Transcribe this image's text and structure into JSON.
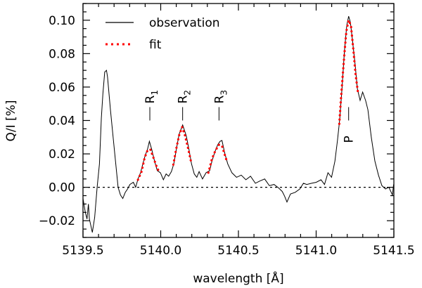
{
  "chart_data": {
    "type": "line",
    "xlabel": "wavelength [Å]",
    "ylabel": "Q/I [%]",
    "xlim": [
      5139.5,
      5141.5
    ],
    "ylim": [
      -0.03,
      0.11
    ],
    "xticks": [
      5139.5,
      5140.0,
      5140.5,
      5141.0,
      5141.5
    ],
    "xtick_labels": [
      "5139.5",
      "5140.0",
      "5140.5",
      "5141.0",
      "5141.5"
    ],
    "yticks": [
      -0.02,
      0.0,
      0.02,
      0.04,
      0.06,
      0.08,
      0.1
    ],
    "ytick_labels": [
      "−0.02",
      "0.00",
      "0.02",
      "0.04",
      "0.06",
      "0.08",
      "0.10"
    ],
    "grid": false,
    "legend_position": "top-left",
    "reference_line": {
      "y": 0.0,
      "style": "dotted"
    },
    "series": [
      {
        "name": "observation",
        "color": "#000000",
        "style": "solid",
        "x": [
          5139.5,
          5139.515,
          5139.526,
          5139.535,
          5139.541,
          5139.56,
          5139.575,
          5139.591,
          5139.606,
          5139.618,
          5139.628,
          5139.64,
          5139.651,
          5139.658,
          5139.677,
          5139.696,
          5139.711,
          5139.726,
          5139.741,
          5139.756,
          5139.772,
          5139.787,
          5139.802,
          5139.824,
          5139.839,
          5139.854,
          5139.87,
          5139.885,
          5139.9,
          5139.915,
          5139.927,
          5139.942,
          5139.96,
          5139.978,
          5139.998,
          5140.017,
          5140.035,
          5140.051,
          5140.069,
          5140.084,
          5140.103,
          5140.118,
          5140.141,
          5140.164,
          5140.179,
          5140.198,
          5140.216,
          5140.232,
          5140.247,
          5140.269,
          5140.292,
          5140.315,
          5140.33,
          5140.349,
          5140.367,
          5140.382,
          5140.394,
          5140.413,
          5140.431,
          5140.458,
          5140.488,
          5140.518,
          5140.548,
          5140.578,
          5140.609,
          5140.639,
          5140.669,
          5140.699,
          5140.729,
          5140.759,
          5140.782,
          5140.797,
          5140.812,
          5140.835,
          5140.865,
          5140.895,
          5140.918,
          5140.94,
          5140.971,
          5141.001,
          5141.031,
          5141.054,
          5141.076,
          5141.099,
          5141.121,
          5141.137,
          5141.152,
          5141.167,
          5141.182,
          5141.197,
          5141.209,
          5141.22,
          5141.235,
          5141.25,
          5141.265,
          5141.283,
          5141.299,
          5141.318,
          5141.333,
          5141.355,
          5141.378,
          5141.401,
          5141.423,
          5141.446,
          5141.468,
          5141.491,
          5141.498
        ],
        "y": [
          -0.0067,
          -0.015,
          -0.019,
          -0.01,
          -0.019,
          -0.027,
          -0.018,
          0.0,
          0.014,
          0.0415,
          0.056,
          0.069,
          0.07,
          0.066,
          0.046,
          0.028,
          0.014,
          0.0,
          -0.0046,
          -0.0067,
          -0.003,
          -0.001,
          0.0017,
          0.003,
          0.0,
          0.005,
          0.0087,
          0.014,
          0.019,
          0.0227,
          0.0275,
          0.0227,
          0.0157,
          0.01,
          0.0087,
          0.0045,
          0.008,
          0.0066,
          0.0094,
          0.014,
          0.024,
          0.0317,
          0.0373,
          0.031,
          0.024,
          0.014,
          0.008,
          0.006,
          0.0094,
          0.005,
          0.0087,
          0.01,
          0.0157,
          0.0213,
          0.0255,
          0.0275,
          0.028,
          0.02,
          0.014,
          0.0087,
          0.006,
          0.0073,
          0.0045,
          0.0066,
          0.0024,
          0.0038,
          0.005,
          0.001,
          0.0017,
          -0.0004,
          -0.0025,
          -0.0053,
          -0.0088,
          -0.004,
          -0.003,
          -0.001,
          0.0024,
          0.0017,
          0.0024,
          0.003,
          0.0045,
          0.0017,
          0.0087,
          0.006,
          0.0157,
          0.028,
          0.041,
          0.06,
          0.0814,
          0.0968,
          0.1024,
          0.099,
          0.087,
          0.074,
          0.059,
          0.052,
          0.057,
          0.052,
          0.0464,
          0.0297,
          0.0157,
          0.0073,
          0.001,
          -0.001,
          0.0,
          -0.0046,
          0.0017
        ]
      },
      {
        "name": "fit",
        "color": "#ff0000",
        "style": "dotted",
        "segments": [
          {
            "x": [
              5139.854,
              5139.877,
              5139.897,
              5139.915,
              5139.933,
              5139.953,
              5139.972,
              5139.99
            ],
            "y": [
              0.0045,
              0.0094,
              0.0178,
              0.022,
              0.0227,
              0.0178,
              0.0129,
              0.009
            ]
          },
          {
            "x": [
              5140.081,
              5140.099,
              5140.118,
              5140.138,
              5140.156,
              5140.176,
              5140.198
            ],
            "y": [
              0.0136,
              0.0227,
              0.031,
              0.036,
              0.031,
              0.0234,
              0.014
            ]
          },
          {
            "x": [
              5140.307,
              5140.33,
              5140.352,
              5140.375,
              5140.394,
              5140.413,
              5140.425
            ],
            "y": [
              0.0087,
              0.0171,
              0.022,
              0.0255,
              0.0248,
              0.0192,
              0.0157
            ]
          },
          {
            "x": [
              5141.149,
              5141.159,
              5141.17,
              5141.182,
              5141.194,
              5141.209,
              5141.224,
              5141.239,
              5141.254,
              5141.269
            ],
            "y": [
              0.038,
              0.052,
              0.066,
              0.08,
              0.0933,
              0.1,
              0.0968,
              0.0828,
              0.0674,
              0.057
            ]
          }
        ]
      }
    ],
    "annotations": [
      {
        "id": "R1",
        "letter": "R",
        "sub": "1",
        "x": 5139.93,
        "y_line": [
          0.04,
          0.048
        ]
      },
      {
        "id": "R2",
        "letter": "R",
        "sub": "2",
        "x": 5140.141,
        "y_line": [
          0.04,
          0.048
        ]
      },
      {
        "id": "R3",
        "letter": "R",
        "sub": "3",
        "x": 5140.375,
        "y_line": [
          0.04,
          0.048
        ]
      },
      {
        "id": "P",
        "letter": "P",
        "sub": "",
        "x": 5141.209,
        "y_line": [
          0.04,
          0.048
        ]
      }
    ],
    "legend": [
      {
        "label": "observation",
        "color": "#000000",
        "style": "solid"
      },
      {
        "label": "fit",
        "color": "#ff0000",
        "style": "dotted"
      }
    ]
  }
}
